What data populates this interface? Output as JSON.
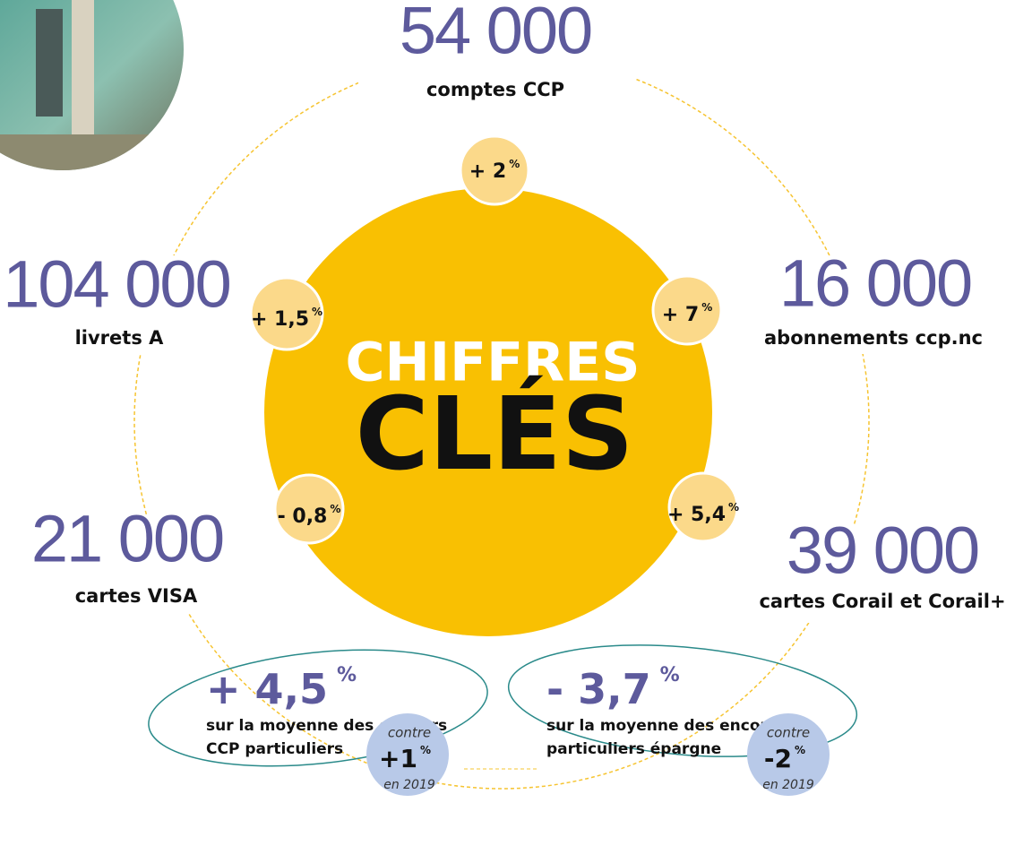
{
  "title": {
    "line1": "CHIFFRES",
    "line2": "CLÉS"
  },
  "stats": [
    {
      "value": "54 000",
      "label": "comptes CCP",
      "change": "+ 2",
      "unit": "%"
    },
    {
      "value": "16 000",
      "label": "abonnements ccp.nc",
      "change": "+ 7",
      "unit": "%"
    },
    {
      "value": "39 000",
      "label": "cartes Corail et Corail+",
      "change": "+ 5,4",
      "unit": "%"
    },
    {
      "value": "21 000",
      "label": "cartes VISA",
      "change": "- 0,8",
      "unit": "%"
    },
    {
      "value": "104 000",
      "label": "livrets A",
      "change": "+ 1,5",
      "unit": "%"
    }
  ],
  "outstanding": [
    {
      "change": "+ 4,5",
      "unit": "%",
      "lines": [
        "sur la moyenne des encours",
        "CCP particuliers"
      ],
      "compare": {
        "prefix": "contre",
        "value": "+1",
        "unit": "%",
        "year": "en 2019"
      }
    },
    {
      "change": "- 3,7",
      "unit": "%",
      "lines": [
        "sur la moyenne des encours",
        "particuliers épargne"
      ],
      "compare": {
        "prefix": "contre",
        "value": "-2",
        "unit": "%",
        "year": "en 2019"
      }
    }
  ]
}
